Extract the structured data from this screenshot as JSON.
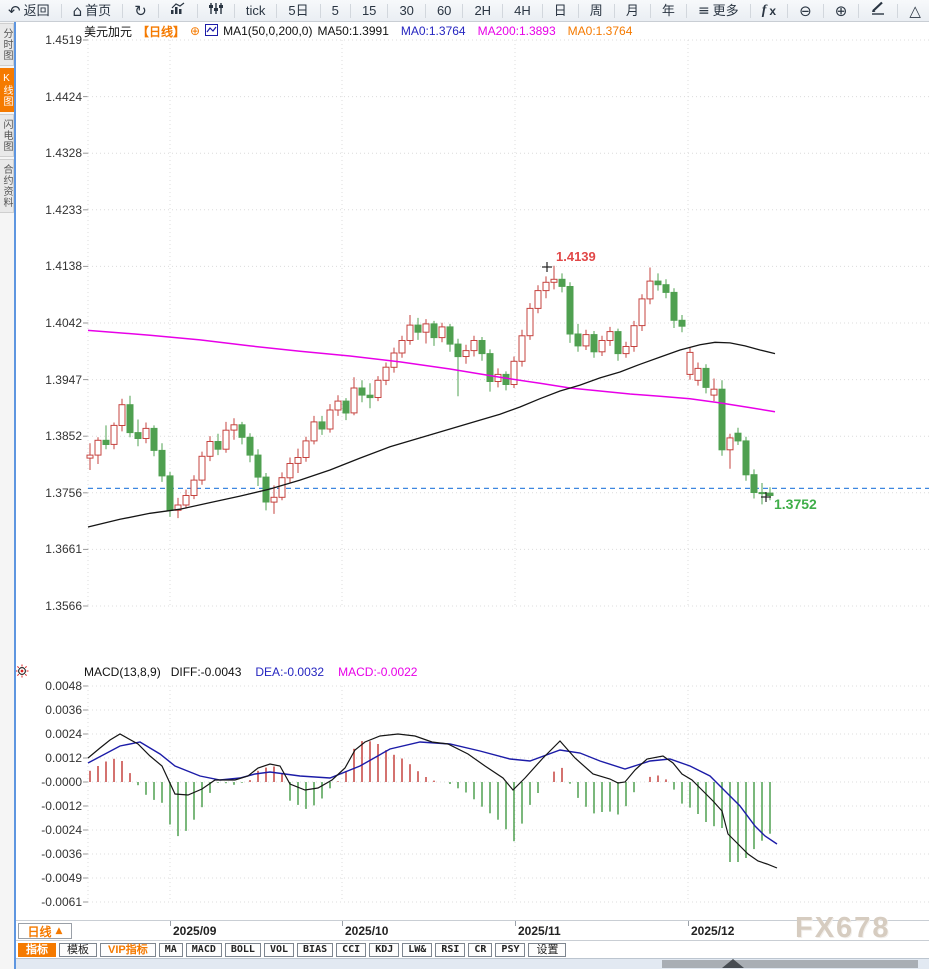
{
  "app": {
    "watermark": "FX678"
  },
  "colors": {
    "accent_orange": "#f57a00",
    "candle_up_red": "#c5433f",
    "candle_down_green": "#4fa050",
    "ma50_black": "#151515",
    "ma200_magenta": "#e800e8",
    "dea_blue": "#1c1ca8",
    "dashed_price_blue": "#3d87e0",
    "last_price_green": "#3fae49",
    "high_label_red": "#e14747"
  },
  "toolbar": {
    "items": [
      {
        "label": "返回",
        "icon": "back-arrow"
      },
      {
        "label": "首页",
        "icon": "home"
      },
      {
        "label": "",
        "icon": "refresh"
      },
      {
        "label": "",
        "icon": "bar-chart"
      },
      {
        "label": "",
        "icon": "candles"
      },
      {
        "label": "tick",
        "icon": ""
      },
      {
        "label": "5日",
        "icon": ""
      },
      {
        "label": "5",
        "icon": ""
      },
      {
        "label": "15",
        "icon": ""
      },
      {
        "label": "30",
        "icon": ""
      },
      {
        "label": "60",
        "icon": ""
      },
      {
        "label": "2H",
        "icon": ""
      },
      {
        "label": "4H",
        "icon": ""
      },
      {
        "label": "日",
        "icon": ""
      },
      {
        "label": "周",
        "icon": ""
      },
      {
        "label": "月",
        "icon": ""
      },
      {
        "label": "年",
        "icon": ""
      },
      {
        "label": "更多",
        "icon": "menu"
      },
      {
        "label": "fx",
        "icon": "fx"
      },
      {
        "label": "",
        "icon": "zoom-out"
      },
      {
        "label": "",
        "icon": "zoom-in"
      },
      {
        "label": "",
        "icon": "pencil"
      },
      {
        "label": "",
        "icon": "triangle"
      }
    ]
  },
  "sidebar": {
    "tabs": [
      {
        "label": "分时图",
        "active": false
      },
      {
        "label": "K线图",
        "active": true
      },
      {
        "label": "闪电图",
        "active": false
      },
      {
        "label": "合约资料",
        "active": false
      }
    ]
  },
  "main_header": {
    "symbol": "美元加元",
    "period_tag": "【日线】",
    "expand_icon": "⊕",
    "ma_title": "MA1(50,0,200,0)",
    "ma_values": [
      {
        "text": "MA50:1.3991",
        "color": "#111111"
      },
      {
        "text": "MA0:1.3764",
        "color": "#2525c0"
      },
      {
        "text": "MA200:1.3893",
        "color": "#e800e8"
      },
      {
        "text": "MA0:1.3764",
        "color": "#f57a00"
      }
    ]
  },
  "macd_header": {
    "title": "MACD(13,8,9)",
    "values": [
      {
        "text": "DIFF:-0.0043",
        "color": "#111111"
      },
      {
        "text": "DEA:-0.0032",
        "color": "#2525c0"
      },
      {
        "text": "MACD:-0.0022",
        "color": "#e800e8"
      }
    ]
  },
  "bottom_bar": {
    "period": {
      "label": "日线",
      "arrow": "▲"
    },
    "tabs": [
      {
        "label": "指标",
        "variant": "active"
      },
      {
        "label": "模板",
        "variant": "normal"
      },
      {
        "label": "VIP指标",
        "variant": "vip"
      },
      {
        "label": "MA",
        "variant": "mono"
      },
      {
        "label": "MACD",
        "variant": "mono"
      },
      {
        "label": "BOLL",
        "variant": "mono"
      },
      {
        "label": "VOL",
        "variant": "mono"
      },
      {
        "label": "BIAS",
        "variant": "mono"
      },
      {
        "label": "CCI",
        "variant": "mono"
      },
      {
        "label": "KDJ",
        "variant": "mono"
      },
      {
        "label": "LW&",
        "variant": "mono"
      },
      {
        "label": "RSI",
        "variant": "mono"
      },
      {
        "label": "CR",
        "variant": "mono"
      },
      {
        "label": "PSY",
        "variant": "mono"
      },
      {
        "label": "设置",
        "variant": "normal"
      }
    ]
  },
  "chart_data": {
    "type": "candlestick",
    "title": "美元加元 日线 USD/CAD Daily",
    "price_axis": {
      "max": 1.4519,
      "min": 1.3566,
      "ticks": [
        "1.4519",
        "1.4424",
        "1.4328",
        "1.4233",
        "1.4138",
        "1.4042",
        "1.3947",
        "1.3852",
        "1.3756",
        "1.3661",
        "1.3566"
      ]
    },
    "x_axis": {
      "labels": [
        "2025/09",
        "2025/10",
        "2025/11",
        "2025/12"
      ]
    },
    "last_price_line": 1.3764,
    "annotations": {
      "high": {
        "label": "1.4139",
        "price": 1.4139
      },
      "last": {
        "label": "1.3752",
        "price": 1.3752
      }
    },
    "candles": [
      [
        1.3815,
        1.384,
        1.3795,
        1.382
      ],
      [
        1.382,
        1.385,
        1.3805,
        1.3845
      ],
      [
        1.3845,
        1.387,
        1.383,
        1.3838
      ],
      [
        1.3838,
        1.3875,
        1.383,
        1.387
      ],
      [
        1.387,
        1.3915,
        1.386,
        1.3905
      ],
      [
        1.3905,
        1.392,
        1.385,
        1.3858
      ],
      [
        1.3858,
        1.388,
        1.3835,
        1.3848
      ],
      [
        1.3848,
        1.3875,
        1.384,
        1.3865
      ],
      [
        1.3865,
        1.387,
        1.3818,
        1.3828
      ],
      [
        1.3828,
        1.384,
        1.3775,
        1.3785
      ],
      [
        1.3785,
        1.3792,
        1.3716,
        1.3727
      ],
      [
        1.3727,
        1.3748,
        1.3714,
        1.3736
      ],
      [
        1.3736,
        1.3762,
        1.373,
        1.3752
      ],
      [
        1.3752,
        1.3786,
        1.3746,
        1.3778
      ],
      [
        1.3778,
        1.3826,
        1.377,
        1.3818
      ],
      [
        1.3818,
        1.3852,
        1.381,
        1.3843
      ],
      [
        1.3843,
        1.3856,
        1.382,
        1.383
      ],
      [
        1.383,
        1.3876,
        1.3824,
        1.3862
      ],
      [
        1.3862,
        1.3882,
        1.3846,
        1.3871
      ],
      [
        1.3871,
        1.3876,
        1.3838,
        1.385
      ],
      [
        1.385,
        1.3857,
        1.3808,
        1.382
      ],
      [
        1.382,
        1.383,
        1.3768,
        1.3783
      ],
      [
        1.3783,
        1.379,
        1.3727,
        1.3741
      ],
      [
        1.3741,
        1.3769,
        1.3721,
        1.3749
      ],
      [
        1.3749,
        1.3791,
        1.3744,
        1.3782
      ],
      [
        1.3782,
        1.3816,
        1.3774,
        1.3806
      ],
      [
        1.3806,
        1.3831,
        1.379,
        1.3816
      ],
      [
        1.3816,
        1.3851,
        1.3809,
        1.3844
      ],
      [
        1.3844,
        1.3886,
        1.3838,
        1.3876
      ],
      [
        1.3876,
        1.3886,
        1.3854,
        1.3864
      ],
      [
        1.3864,
        1.3906,
        1.3858,
        1.3896
      ],
      [
        1.3896,
        1.3921,
        1.3886,
        1.3911
      ],
      [
        1.3911,
        1.3916,
        1.3879,
        1.3891
      ],
      [
        1.3891,
        1.3951,
        1.3887,
        1.3933
      ],
      [
        1.3933,
        1.3946,
        1.3909,
        1.3921
      ],
      [
        1.3921,
        1.3941,
        1.3899,
        1.3917
      ],
      [
        1.3917,
        1.3953,
        1.3911,
        1.3946
      ],
      [
        1.3946,
        1.3976,
        1.3938,
        1.3968
      ],
      [
        1.3968,
        1.4001,
        1.3959,
        1.3992
      ],
      [
        1.3992,
        1.4021,
        1.3984,
        1.4013
      ],
      [
        1.4013,
        1.4056,
        1.4006,
        1.4039
      ],
      [
        1.4039,
        1.4051,
        1.4014,
        1.4027
      ],
      [
        1.4027,
        1.4049,
        1.4008,
        1.4041
      ],
      [
        1.4041,
        1.4046,
        1.4004,
        1.4018
      ],
      [
        1.4018,
        1.4043,
        1.401,
        1.4036
      ],
      [
        1.4036,
        1.4041,
        1.3994,
        1.4007
      ],
      [
        1.4007,
        1.4016,
        1.3919,
        1.3986
      ],
      [
        1.3986,
        1.4006,
        1.3974,
        1.3996
      ],
      [
        1.3996,
        1.4021,
        1.3986,
        1.4013
      ],
      [
        1.4013,
        1.4019,
        1.3979,
        1.3991
      ],
      [
        1.3991,
        1.3998,
        1.3927,
        1.3944
      ],
      [
        1.3944,
        1.3966,
        1.3934,
        1.3956
      ],
      [
        1.3956,
        1.3961,
        1.3929,
        1.3939
      ],
      [
        1.3939,
        1.3986,
        1.3933,
        1.3978
      ],
      [
        1.3978,
        1.4031,
        1.3969,
        1.4021
      ],
      [
        1.4021,
        1.4076,
        1.4014,
        1.4067
      ],
      [
        1.4067,
        1.4106,
        1.4059,
        1.4097
      ],
      [
        1.4097,
        1.4121,
        1.4084,
        1.4111
      ],
      [
        1.4111,
        1.4139,
        1.4099,
        1.4116
      ],
      [
        1.4116,
        1.4126,
        1.4094,
        1.4104
      ],
      [
        1.4104,
        1.4111,
        1.4009,
        1.4024
      ],
      [
        1.4024,
        1.4041,
        1.3994,
        1.4004
      ],
      [
        1.4004,
        1.4031,
        1.3997,
        1.4023
      ],
      [
        1.4023,
        1.4029,
        1.3984,
        1.3994
      ],
      [
        1.3994,
        1.4021,
        1.3987,
        1.4013
      ],
      [
        1.4013,
        1.4036,
        1.4004,
        1.4028
      ],
      [
        1.4028,
        1.4033,
        1.3979,
        1.3991
      ],
      [
        1.3991,
        1.4011,
        1.3984,
        1.4003
      ],
      [
        1.4003,
        1.4046,
        1.3994,
        1.4038
      ],
      [
        1.4038,
        1.4091,
        1.4029,
        1.4083
      ],
      [
        1.4083,
        1.4136,
        1.4074,
        1.4113
      ],
      [
        1.4113,
        1.4126,
        1.4097,
        1.4107
      ],
      [
        1.4107,
        1.4116,
        1.4084,
        1.4094
      ],
      [
        1.4094,
        1.4101,
        1.4034,
        1.4047
      ],
      [
        1.4047,
        1.4056,
        1.4027,
        1.4037
      ],
      [
        1.3956,
        1.4001,
        1.3947,
        1.3993
      ],
      [
        1.3946,
        1.3976,
        1.3937,
        1.3966
      ],
      [
        1.3966,
        1.3973,
        1.3924,
        1.3934
      ],
      [
        1.3921,
        1.3949,
        1.3911,
        1.3931
      ],
      [
        1.3931,
        1.3946,
        1.3819,
        1.3829
      ],
      [
        1.3829,
        1.3856,
        1.3797,
        1.3849
      ],
      [
        1.3857,
        1.3866,
        1.3837,
        1.3844
      ],
      [
        1.3844,
        1.3851,
        1.3777,
        1.3787
      ],
      [
        1.3787,
        1.3796,
        1.3747,
        1.3757
      ],
      [
        1.3757,
        1.3773,
        1.3737,
        1.3756
      ],
      [
        1.3756,
        1.3766,
        1.3744,
        1.3752
      ]
    ],
    "ma50": [
      [
        88,
        1.3699
      ],
      [
        120,
        1.3712
      ],
      [
        150,
        1.3722
      ],
      [
        180,
        1.3729
      ],
      [
        210,
        1.374
      ],
      [
        240,
        1.3751
      ],
      [
        270,
        1.3763
      ],
      [
        300,
        1.3778
      ],
      [
        330,
        1.3795
      ],
      [
        360,
        1.3815
      ],
      [
        390,
        1.3834
      ],
      [
        420,
        1.3849
      ],
      [
        450,
        1.3864
      ],
      [
        480,
        1.3879
      ],
      [
        500,
        1.3889
      ],
      [
        520,
        1.3901
      ],
      [
        540,
        1.3915
      ],
      [
        560,
        1.3928
      ],
      [
        580,
        1.3938
      ],
      [
        600,
        1.395
      ],
      [
        620,
        1.396
      ],
      [
        640,
        1.3973
      ],
      [
        660,
        1.3985
      ],
      [
        680,
        1.3997
      ],
      [
        700,
        1.4006
      ],
      [
        715,
        1.401
      ],
      [
        730,
        1.4009
      ],
      [
        745,
        1.4004
      ],
      [
        760,
        1.3997
      ],
      [
        775,
        1.3991
      ]
    ],
    "ma200": [
      [
        88,
        1.403
      ],
      [
        150,
        1.4022
      ],
      [
        200,
        1.4014
      ],
      [
        250,
        1.4004
      ],
      [
        300,
        1.3995
      ],
      [
        350,
        1.3987
      ],
      [
        400,
        1.3977
      ],
      [
        450,
        1.3965
      ],
      [
        500,
        1.3951
      ],
      [
        540,
        1.3941
      ],
      [
        570,
        1.3933
      ],
      [
        600,
        1.3928
      ],
      [
        630,
        1.3923
      ],
      [
        660,
        1.3919
      ],
      [
        690,
        1.3915
      ],
      [
        720,
        1.3908
      ],
      [
        750,
        1.39
      ],
      [
        775,
        1.3893
      ]
    ],
    "macd": {
      "params": "13,8,9",
      "axis_ticks": [
        "0.0048",
        "0.0036",
        "0.0024",
        "0.0012",
        "-0.0000",
        "-0.0012",
        "-0.0024",
        "-0.0036",
        "-0.0049",
        "-0.0061"
      ],
      "diff_last": -0.0043,
      "dea_last": -0.0032,
      "macd_last": -0.0022,
      "diff": [
        [
          88,
          0.0012
        ],
        [
          100,
          0.0017
        ],
        [
          110,
          0.0021
        ],
        [
          120,
          0.0024
        ],
        [
          138,
          0.0019
        ],
        [
          150,
          0.0013
        ],
        [
          162,
          0.0008
        ],
        [
          175,
          -0.0006
        ],
        [
          188,
          -0.00065
        ],
        [
          202,
          -0.00035
        ],
        [
          215,
          0.0001
        ],
        [
          235,
          0.0001
        ],
        [
          248,
          0.0003
        ],
        [
          258,
          0.0007
        ],
        [
          270,
          0.0009
        ],
        [
          280,
          0.0008
        ],
        [
          290,
          -0.0001
        ],
        [
          305,
          -0.0004
        ],
        [
          318,
          -0.0003
        ],
        [
          332,
          0.0001
        ],
        [
          345,
          0.0007
        ],
        [
          355,
          0.0016
        ],
        [
          365,
          0.002
        ],
        [
          380,
          0.0023
        ],
        [
          398,
          0.0024
        ],
        [
          415,
          0.0023
        ],
        [
          432,
          0.002
        ],
        [
          448,
          0.0019
        ],
        [
          468,
          0.0014
        ],
        [
          485,
          0.0008
        ],
        [
          503,
          0.0002
        ],
        [
          513,
          -0.0004
        ],
        [
          525,
          0.0002
        ],
        [
          543,
          0.0012
        ],
        [
          560,
          0.00205
        ],
        [
          575,
          0.0012
        ],
        [
          593,
          0.0004
        ],
        [
          610,
          0.00015
        ],
        [
          618,
          -5e-05
        ],
        [
          625,
          0.0
        ],
        [
          635,
          0.0006
        ],
        [
          647,
          0.00115
        ],
        [
          663,
          0.0013
        ],
        [
          673,
          0.00095
        ],
        [
          682,
          0.0004
        ],
        [
          692,
          0.0001
        ],
        [
          703,
          -0.00045
        ],
        [
          713,
          -0.00095
        ],
        [
          722,
          -0.00145
        ],
        [
          728,
          -0.0026
        ],
        [
          738,
          -0.0031
        ],
        [
          748,
          -0.0036
        ],
        [
          758,
          -0.00395
        ],
        [
          767,
          -0.0041
        ],
        [
          777,
          -0.0043
        ]
      ],
      "dea": [
        [
          88,
          0.00095
        ],
        [
          120,
          0.0018
        ],
        [
          140,
          0.002
        ],
        [
          160,
          0.0014
        ],
        [
          175,
          0.0008
        ],
        [
          200,
          0.0003
        ],
        [
          220,
          0.0001
        ],
        [
          240,
          0.0002
        ],
        [
          255,
          0.0004
        ],
        [
          270,
          0.0005
        ],
        [
          285,
          0.0004
        ],
        [
          300,
          0.0003
        ],
        [
          330,
          0.0002
        ],
        [
          360,
          0.0008
        ],
        [
          390,
          0.00165
        ],
        [
          420,
          0.002
        ],
        [
          450,
          0.0019
        ],
        [
          480,
          0.00155
        ],
        [
          510,
          0.00115
        ],
        [
          530,
          0.00105
        ],
        [
          560,
          0.0016
        ],
        [
          580,
          0.00145
        ],
        [
          600,
          0.00105
        ],
        [
          625,
          0.00065
        ],
        [
          650,
          0.00105
        ],
        [
          670,
          0.00115
        ],
        [
          690,
          0.0008
        ],
        [
          710,
          0.0003
        ],
        [
          725,
          -0.00045
        ],
        [
          740,
          -0.0012
        ],
        [
          755,
          -0.0022
        ],
        [
          765,
          -0.0027
        ],
        [
          777,
          -0.0031
        ]
      ]
    }
  }
}
